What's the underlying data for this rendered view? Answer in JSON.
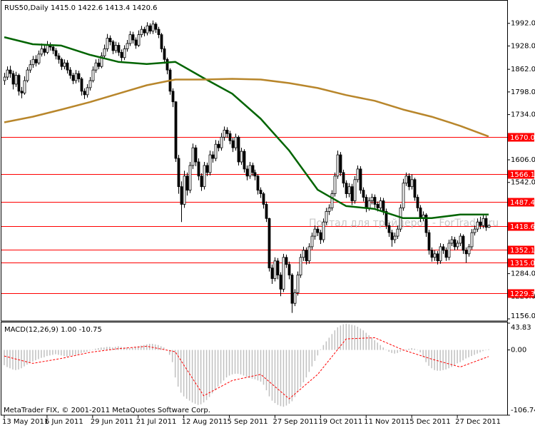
{
  "chart_data": [
    {
      "type": "candlestick",
      "title": "RUS50,Daily  1415.0 1422.6 1413.4 1420.6",
      "xlim": [
        -1,
        176.5
      ],
      "ylim": [
        1150,
        2054
      ],
      "yticks": [
        {
          "value": 1992,
          "label": "1992.0"
        },
        {
          "value": 1928,
          "label": "1928.0"
        },
        {
          "value": 1862,
          "label": "1862.0"
        },
        {
          "value": 1798,
          "label": "1798.0"
        },
        {
          "value": 1734,
          "label": "1734.0"
        },
        {
          "value": 1606,
          "label": "1606.0"
        },
        {
          "value": 1542,
          "label": "1542.0"
        },
        {
          "value": 1284,
          "label": "1284.0"
        },
        {
          "value": 1220,
          "label": "1220.0"
        },
        {
          "value": 1156,
          "label": "1156.0"
        }
      ],
      "open": [
        1830,
        1840,
        1860,
        1850,
        1820,
        1845,
        1800,
        1795,
        1830,
        1860,
        1875,
        1890,
        1880,
        1905,
        1920,
        1910,
        1930,
        1925,
        1915,
        1900,
        1890,
        1870,
        1880,
        1860,
        1845,
        1830,
        1850,
        1835,
        1800,
        1790,
        1810,
        1830,
        1860,
        1880,
        1870,
        1900,
        1920,
        1950,
        1940,
        1915,
        1930,
        1910,
        1895,
        1920,
        1935,
        1960,
        1945,
        1930,
        1960,
        1975,
        1965,
        1985,
        1970,
        1990,
        1975,
        1960,
        1920,
        1890,
        1860,
        1800,
        1770,
        1610,
        1530,
        1480,
        1560,
        1520,
        1590,
        1640,
        1600,
        1560,
        1530,
        1590,
        1570,
        1620,
        1610,
        1650,
        1640,
        1670,
        1690,
        1680,
        1660,
        1640,
        1670,
        1600,
        1630,
        1580,
        1560,
        1590,
        1570,
        1560,
        1520,
        1510,
        1480,
        1440,
        1300,
        1270,
        1320,
        1280,
        1240,
        1330,
        1310,
        1280,
        1200,
        1230,
        1280,
        1330,
        1350,
        1320,
        1360,
        1390,
        1410,
        1400,
        1380,
        1430,
        1460,
        1470,
        1510,
        1560,
        1620,
        1570,
        1540,
        1510,
        1530,
        1490,
        1550,
        1580,
        1520,
        1500,
        1470,
        1490,
        1500,
        1480,
        1470,
        1490,
        1460,
        1420,
        1400,
        1380,
        1390,
        1410,
        1470,
        1540,
        1560,
        1530,
        1550,
        1500,
        1470,
        1440,
        1450,
        1400,
        1350,
        1330,
        1340,
        1320,
        1360,
        1350,
        1330,
        1370,
        1380,
        1360,
        1370,
        1390,
        1350,
        1340,
        1360,
        1400,
        1410,
        1430,
        1420,
        1440,
        1415
      ],
      "high": [
        1852,
        1870,
        1872,
        1858,
        1855,
        1850,
        1812,
        1842,
        1868,
        1888,
        1900,
        1902,
        1915,
        1935,
        1930,
        1942,
        1938,
        1932,
        1922,
        1908,
        1895,
        1890,
        1888,
        1868,
        1852,
        1860,
        1858,
        1840,
        1808,
        1820,
        1840,
        1870,
        1890,
        1892,
        1910,
        1932,
        1962,
        1958,
        1945,
        1940,
        1938,
        1918,
        1930,
        1945,
        1970,
        1968,
        1952,
        1972,
        1985,
        1982,
        1995,
        1992,
        2000,
        1995,
        1982,
        1965,
        1928,
        1895,
        1865,
        1808,
        1772,
        1620,
        1545,
        1575,
        1570,
        1600,
        1652,
        1648,
        1610,
        1568,
        1600,
        1598,
        1632,
        1630,
        1662,
        1660,
        1682,
        1700,
        1698,
        1688,
        1668,
        1680,
        1675,
        1640,
        1636,
        1590,
        1600,
        1598,
        1578,
        1565,
        1528,
        1515,
        1488,
        1442,
        1310,
        1330,
        1328,
        1288,
        1340,
        1338,
        1318,
        1285,
        1240,
        1290,
        1340,
        1360,
        1358,
        1370,
        1400,
        1420,
        1418,
        1408,
        1440,
        1470,
        1480,
        1520,
        1570,
        1632,
        1628,
        1578,
        1548,
        1540,
        1538,
        1560,
        1590,
        1588,
        1528,
        1508,
        1500,
        1510,
        1508,
        1488,
        1500,
        1498,
        1468,
        1428,
        1408,
        1400,
        1420,
        1480,
        1552,
        1570,
        1568,
        1565,
        1555,
        1508,
        1478,
        1460,
        1455,
        1408,
        1358,
        1350,
        1348,
        1370,
        1368,
        1358,
        1380,
        1390,
        1388,
        1378,
        1398,
        1395,
        1358,
        1368,
        1410,
        1420,
        1440,
        1445,
        1450,
        1448,
        1422.6
      ],
      "low": [
        1818,
        1832,
        1838,
        1805,
        1812,
        1788,
        1780,
        1790,
        1825,
        1852,
        1866,
        1870,
        1875,
        1898,
        1900,
        1905,
        1915,
        1905,
        1890,
        1878,
        1860,
        1862,
        1850,
        1835,
        1820,
        1822,
        1825,
        1788,
        1778,
        1782,
        1802,
        1825,
        1852,
        1862,
        1865,
        1892,
        1912,
        1930,
        1905,
        1908,
        1900,
        1885,
        1888,
        1912,
        1928,
        1935,
        1920,
        1925,
        1952,
        1955,
        1958,
        1962,
        1962,
        1965,
        1950,
        1910,
        1878,
        1848,
        1790,
        1755,
        1600,
        1510,
        1430,
        1470,
        1505,
        1512,
        1580,
        1588,
        1548,
        1518,
        1522,
        1560,
        1562,
        1598,
        1602,
        1630,
        1632,
        1660,
        1668,
        1650,
        1628,
        1632,
        1590,
        1592,
        1570,
        1548,
        1552,
        1560,
        1548,
        1508,
        1498,
        1468,
        1430,
        1290,
        1255,
        1262,
        1268,
        1220,
        1232,
        1300,
        1268,
        1173,
        1192,
        1222,
        1272,
        1320,
        1310,
        1312,
        1352,
        1380,
        1390,
        1368,
        1372,
        1422,
        1450,
        1462,
        1502,
        1552,
        1560,
        1528,
        1498,
        1500,
        1478,
        1482,
        1542,
        1510,
        1488,
        1458,
        1462,
        1480,
        1470,
        1460,
        1462,
        1450,
        1410,
        1388,
        1360,
        1370,
        1382,
        1402,
        1462,
        1532,
        1520,
        1522,
        1490,
        1460,
        1430,
        1432,
        1388,
        1338,
        1318,
        1320,
        1310,
        1312,
        1340,
        1320,
        1322,
        1362,
        1350,
        1352,
        1362,
        1340,
        1315,
        1332,
        1352,
        1392,
        1402,
        1410,
        1412,
        1405,
        1413.4
      ],
      "close": [
        1840,
        1860,
        1850,
        1820,
        1845,
        1800,
        1795,
        1830,
        1860,
        1875,
        1890,
        1880,
        1905,
        1920,
        1910,
        1930,
        1925,
        1915,
        1900,
        1890,
        1870,
        1880,
        1860,
        1845,
        1830,
        1850,
        1835,
        1800,
        1790,
        1810,
        1830,
        1860,
        1880,
        1870,
        1900,
        1920,
        1950,
        1940,
        1915,
        1930,
        1910,
        1895,
        1920,
        1935,
        1960,
        1945,
        1930,
        1960,
        1975,
        1965,
        1985,
        1970,
        1990,
        1975,
        1960,
        1920,
        1890,
        1860,
        1800,
        1770,
        1610,
        1530,
        1480,
        1560,
        1520,
        1590,
        1640,
        1600,
        1560,
        1530,
        1590,
        1570,
        1620,
        1610,
        1650,
        1640,
        1670,
        1690,
        1680,
        1660,
        1640,
        1670,
        1600,
        1630,
        1580,
        1560,
        1590,
        1570,
        1560,
        1520,
        1510,
        1480,
        1440,
        1300,
        1270,
        1320,
        1280,
        1240,
        1330,
        1310,
        1280,
        1200,
        1230,
        1280,
        1330,
        1350,
        1320,
        1360,
        1390,
        1410,
        1400,
        1380,
        1430,
        1460,
        1470,
        1510,
        1560,
        1620,
        1570,
        1540,
        1510,
        1530,
        1490,
        1550,
        1580,
        1520,
        1500,
        1470,
        1490,
        1500,
        1480,
        1470,
        1490,
        1460,
        1420,
        1400,
        1380,
        1390,
        1410,
        1470,
        1540,
        1560,
        1530,
        1550,
        1500,
        1470,
        1440,
        1450,
        1400,
        1350,
        1330,
        1340,
        1320,
        1360,
        1350,
        1330,
        1370,
        1380,
        1360,
        1370,
        1390,
        1350,
        1340,
        1360,
        1400,
        1410,
        1430,
        1420,
        1440,
        1415,
        1420.6
      ],
      "up_color": "#ffffff",
      "down_color": "#000000",
      "wick_color": "#000000",
      "series": [
        {
          "color": "#006400",
          "x": [
            0,
            10,
            20,
            30,
            40,
            50,
            60,
            70,
            80,
            90,
            100,
            110,
            120,
            130,
            140,
            150,
            160,
            170
          ],
          "values": [
            1953,
            1933,
            1929,
            1903,
            1883,
            1877,
            1883,
            1837,
            1793,
            1722,
            1632,
            1521,
            1475,
            1467,
            1441,
            1441,
            1451,
            1451
          ]
        },
        {
          "color": "#b8862b",
          "x": [
            0,
            10,
            20,
            30,
            40,
            50,
            60,
            70,
            80,
            90,
            100,
            110,
            120,
            130,
            140,
            150,
            160,
            170
          ],
          "values": [
            1712,
            1728,
            1748,
            1769,
            1793,
            1817,
            1833,
            1833,
            1835,
            1833,
            1823,
            1809,
            1789,
            1773,
            1748,
            1728,
            1702,
            1672
          ]
        }
      ],
      "levels": {
        "values": [
          1670.0,
          1566.1,
          1487.4,
          1418.6,
          1352.1,
          1315.0,
          1229.3
        ],
        "value_labels": [
          "1670.0",
          "1566.1",
          "1487.4",
          "1418.6",
          "1352.1",
          "1315.0",
          "1229.3"
        ],
        "color": "#ff0000"
      },
      "watermark": "Портал для трейдеров - ForTrader.ru"
    },
    {
      "type": "bar",
      "title": "MACD(12,26,9) 1.00 -10.75",
      "xlim": [
        -1,
        176.5
      ],
      "ylim": [
        -106.74,
        43.83
      ],
      "yticks": [
        43.83,
        {
          "value": 0,
          "label": "0.00"
        },
        -106.74
      ],
      "values": [
        -25,
        -28,
        -30,
        -32,
        -33,
        -32,
        -30,
        -27,
        -24,
        -21,
        -19,
        -17,
        -15,
        -13,
        -12,
        -10,
        -9,
        -8,
        -7,
        -8,
        -9,
        -10,
        -11,
        -10,
        -9,
        -8,
        -7,
        -5,
        -4,
        -3,
        -1,
        0,
        2,
        3,
        4,
        4,
        5,
        5,
        4,
        5,
        6,
        5,
        4,
        4,
        3,
        4,
        5,
        6,
        7,
        8,
        9,
        10,
        10,
        9,
        8,
        6,
        4,
        0,
        -8,
        -20,
        -45,
        -60,
        -70,
        -76,
        -80,
        -83,
        -86,
        -88,
        -90,
        -89,
        -86,
        -82,
        -77,
        -71,
        -66,
        -60,
        -55,
        -50,
        -45,
        -42,
        -40,
        -39,
        -39,
        -40,
        -42,
        -44,
        -46,
        -47,
        -48,
        -50,
        -52,
        -57,
        -66,
        -76,
        -83,
        -87,
        -90,
        -92,
        -93,
        -91,
        -88,
        -84,
        -77,
        -69,
        -61,
        -53,
        -45,
        -36,
        -27,
        -18,
        -9,
        1,
        8,
        14,
        20,
        26,
        32,
        37,
        40,
        42,
        43,
        42,
        41,
        40,
        38,
        35,
        32,
        28,
        24,
        20,
        16,
        12,
        8,
        4,
        0,
        -3,
        -5,
        -6,
        -5,
        -3,
        -1,
        1,
        2,
        3,
        2,
        0,
        -4,
        -12,
        -20,
        -26,
        -30,
        -33,
        -34,
        -34,
        -33,
        -32,
        -30,
        -28,
        -25,
        -22,
        -20,
        -17,
        -14,
        -12,
        -10,
        -8,
        -6,
        -4,
        -2,
        0,
        1
      ],
      "color": "#c0c0c0",
      "series": [
        {
          "color": "#ff0000",
          "dashed": true,
          "x": [
            0,
            10,
            20,
            30,
            40,
            50,
            60,
            70,
            80,
            90,
            100,
            110,
            120,
            130,
            140,
            150,
            160,
            170
          ],
          "values": [
            -10,
            -22,
            -14,
            -4,
            2,
            6,
            -3,
            -75,
            -50,
            -40,
            -80,
            -40,
            18,
            20,
            0,
            -15,
            -28,
            -10.75
          ]
        }
      ],
      "xticks": [
        {
          "value": 0,
          "label": "13 May 2011"
        },
        {
          "value": 15,
          "label": "6 Jun 2011"
        },
        {
          "value": 31,
          "label": "29 Jun 2011"
        },
        {
          "value": 47,
          "label": "21 Jul 2011"
        },
        {
          "value": 63,
          "label": "12 Aug 2011"
        },
        {
          "value": 79,
          "label": "5 Sep 2011"
        },
        {
          "value": 95,
          "label": "27 Sep 2011"
        },
        {
          "value": 111,
          "label": "19 Oct 2011"
        },
        {
          "value": 127,
          "label": "11 Nov 2011"
        },
        {
          "value": 143,
          "label": "5 Dec 2011"
        },
        {
          "value": 159,
          "label": "27 Dec 2011"
        }
      ],
      "footnote": "MetaTrader FIX, © 2001-2011 MetaQuotes Software Corp."
    }
  ]
}
